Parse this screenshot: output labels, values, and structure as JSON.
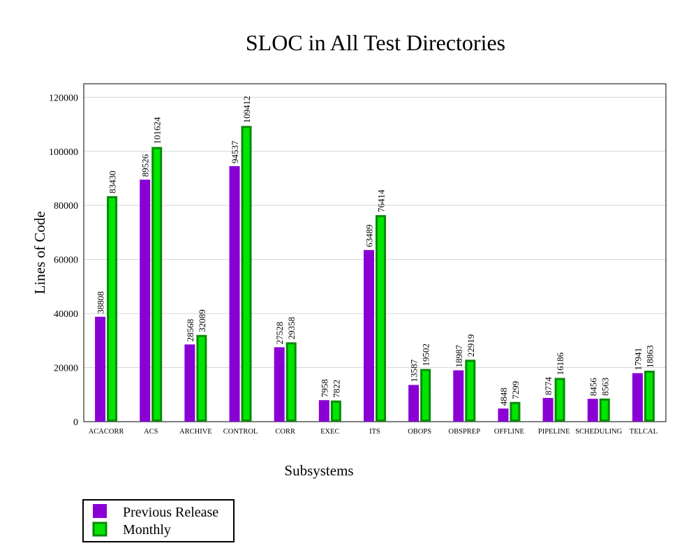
{
  "chart_data": {
    "type": "bar",
    "title": "SLOC in All Test Directories",
    "xlabel": "Subsystems",
    "ylabel": "Lines of Code",
    "ylim": [
      0,
      125000
    ],
    "yticks": [
      0,
      20000,
      40000,
      60000,
      80000,
      100000,
      120000
    ],
    "grid": true,
    "legend_position": "bottom-left",
    "categories": [
      "ACACORR",
      "ACS",
      "ARCHIVE",
      "CONTROL",
      "CORR",
      "EXEC",
      "ITS",
      "OBOPS",
      "OBSPREP",
      "OFFLINE",
      "PIPELINE",
      "SCHEDULING",
      "TELCAL"
    ],
    "series": [
      {
        "name": "Previous Release",
        "color": "#8a00d4",
        "border": "#8a00d4",
        "values": [
          38808,
          89526,
          28568,
          94537,
          27528,
          7958,
          63489,
          13587,
          18987,
          4848,
          8774,
          8456,
          17941
        ]
      },
      {
        "name": "Monthly",
        "color": "#00e600",
        "border": "#0a8a0a",
        "values": [
          83430,
          101624,
          32089,
          109412,
          29358,
          7822,
          76414,
          19502,
          22919,
          7299,
          16186,
          8563,
          18863
        ]
      }
    ]
  }
}
